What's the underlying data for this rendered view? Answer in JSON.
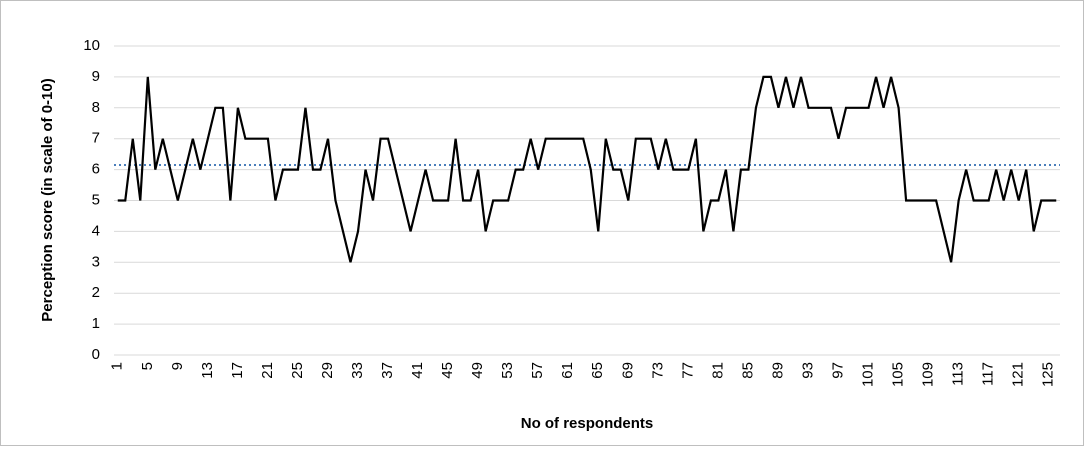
{
  "chart_data": {
    "type": "line",
    "y_label": "Perception score (in scale of 0-10)",
    "x_label": "No of respondents",
    "categories": [
      "1",
      null,
      null,
      null,
      "5",
      null,
      null,
      null,
      "9",
      null,
      null,
      null,
      "13",
      null,
      null,
      null,
      "17",
      null,
      null,
      null,
      "21",
      null,
      null,
      null,
      "25",
      null,
      null,
      null,
      "29",
      null,
      null,
      null,
      "33",
      null,
      null,
      null,
      "37",
      null,
      null,
      null,
      "41",
      null,
      null,
      null,
      "45",
      null,
      null,
      null,
      "49",
      null,
      null,
      null,
      "53",
      null,
      null,
      null,
      "57",
      null,
      null,
      null,
      "61",
      null,
      null,
      null,
      "65",
      null,
      null,
      null,
      "69",
      null,
      null,
      null,
      "73",
      null,
      null,
      null,
      "77",
      null,
      null,
      null,
      "81",
      null,
      null,
      null,
      "85",
      null,
      null,
      null,
      "89",
      null,
      null,
      null,
      "93",
      null,
      null,
      null,
      "97",
      null,
      null,
      null,
      "101",
      null,
      null,
      null,
      "105",
      null,
      null,
      null,
      "109",
      null,
      null,
      null,
      "113",
      null,
      null,
      null,
      "117",
      null,
      null,
      null,
      "121",
      null,
      null,
      null,
      "125",
      null
    ],
    "values": [
      5,
      5,
      7,
      5,
      9,
      6,
      7,
      6,
      5,
      6,
      7,
      6,
      7,
      8,
      8,
      5,
      8,
      7,
      7,
      7,
      7,
      5,
      6,
      6,
      6,
      8,
      6,
      6,
      7,
      5,
      4,
      3,
      4,
      6,
      5,
      7,
      7,
      6,
      5,
      4,
      5,
      6,
      5,
      5,
      5,
      7,
      5,
      5,
      6,
      4,
      5,
      5,
      5,
      6,
      6,
      7,
      6,
      7,
      7,
      7,
      7,
      7,
      7,
      6,
      4,
      7,
      6,
      6,
      5,
      7,
      7,
      7,
      6,
      7,
      6,
      6,
      6,
      7,
      4,
      5,
      5,
      6,
      4,
      6,
      6,
      8,
      9,
      9,
      8,
      9,
      8,
      9,
      8,
      8,
      8,
      8,
      7,
      8,
      8,
      8,
      8,
      9,
      8,
      9,
      8,
      5,
      5,
      5,
      5,
      5,
      4,
      3,
      5,
      6,
      5,
      5,
      5,
      6,
      5,
      6,
      5,
      6,
      4,
      5,
      5,
      5
    ],
    "color": "#000000",
    "mean_line": 6.15,
    "mean_color": "#4a7ebb",
    "ylim": [
      0,
      10
    ],
    "yticks": [
      0,
      1,
      2,
      3,
      4,
      5,
      6,
      7,
      8,
      9,
      10
    ],
    "grid": true
  }
}
